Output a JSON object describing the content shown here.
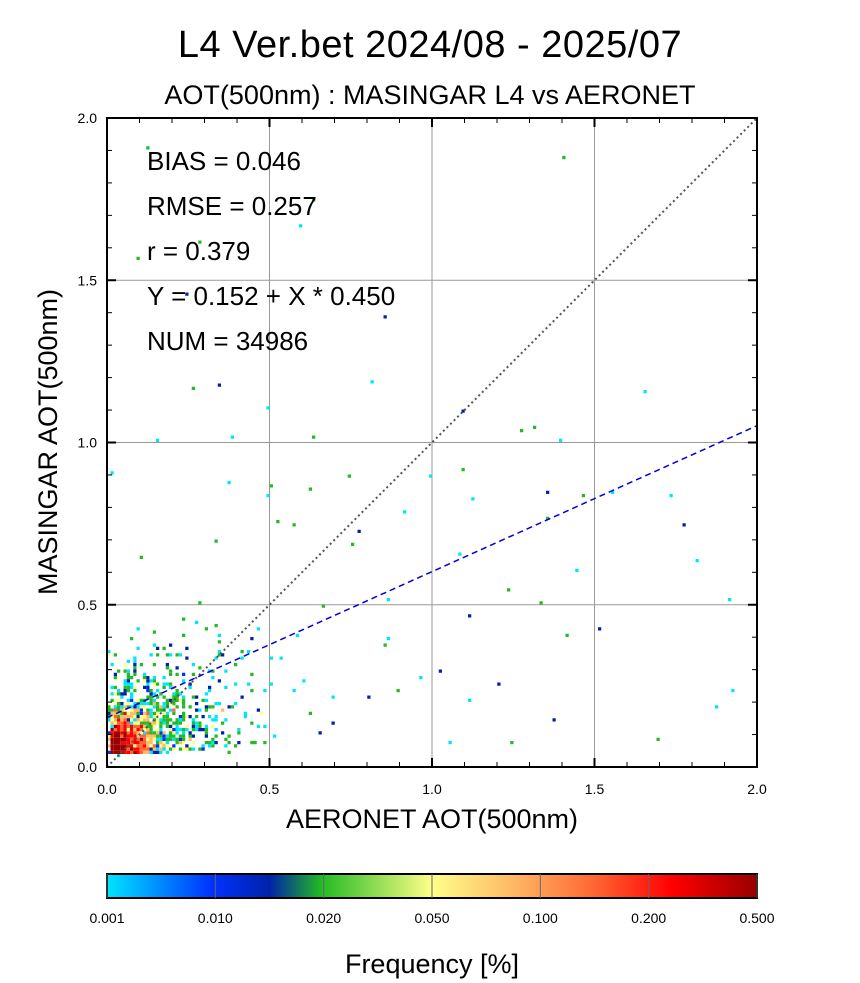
{
  "title": "L4  Ver.bet  2024/08 - 2025/07",
  "subtitle": "AOT(500nm) : MASINGAR L4 vs AERONET",
  "stats": [
    "BIAS = 0.046",
    "RMSE = 0.257",
    "r = 0.379",
    "Y = 0.152 + X * 0.450",
    "NUM = 34986"
  ],
  "chart_data": {
    "type": "heatmap",
    "xlabel": "AERONET AOT(500nm)",
    "ylabel": "MASINGAR AOT(500nm)",
    "xlim": [
      0.0,
      2.0
    ],
    "ylim": [
      0.0,
      2.0
    ],
    "x_ticks": [
      "0.0",
      "0.5",
      "1.0",
      "1.5",
      "2.0"
    ],
    "y_ticks": [
      "0.0",
      "0.5",
      "1.0",
      "1.5",
      "2.0"
    ],
    "grid": true,
    "reference_line": {
      "type": "one-to-one",
      "style": "dotted",
      "color": "#555555"
    },
    "regression_line": {
      "intercept": 0.152,
      "slope": 0.45,
      "style": "dashed",
      "color": "#0000dd"
    },
    "density_peak": {
      "x": 0.05,
      "y": 0.1
    },
    "colorbar": {
      "label": "Frequency [%]",
      "ticks": [
        "0.001",
        "0.010",
        "0.020",
        "0.050",
        "0.100",
        "0.200",
        "0.500"
      ],
      "colors": [
        "#00e5ff",
        "#0033ff",
        "#0022aa",
        "#22bb22",
        "#ffff88",
        "#ffbb66",
        "#ff6633",
        "#ff0000",
        "#990000"
      ]
    }
  }
}
